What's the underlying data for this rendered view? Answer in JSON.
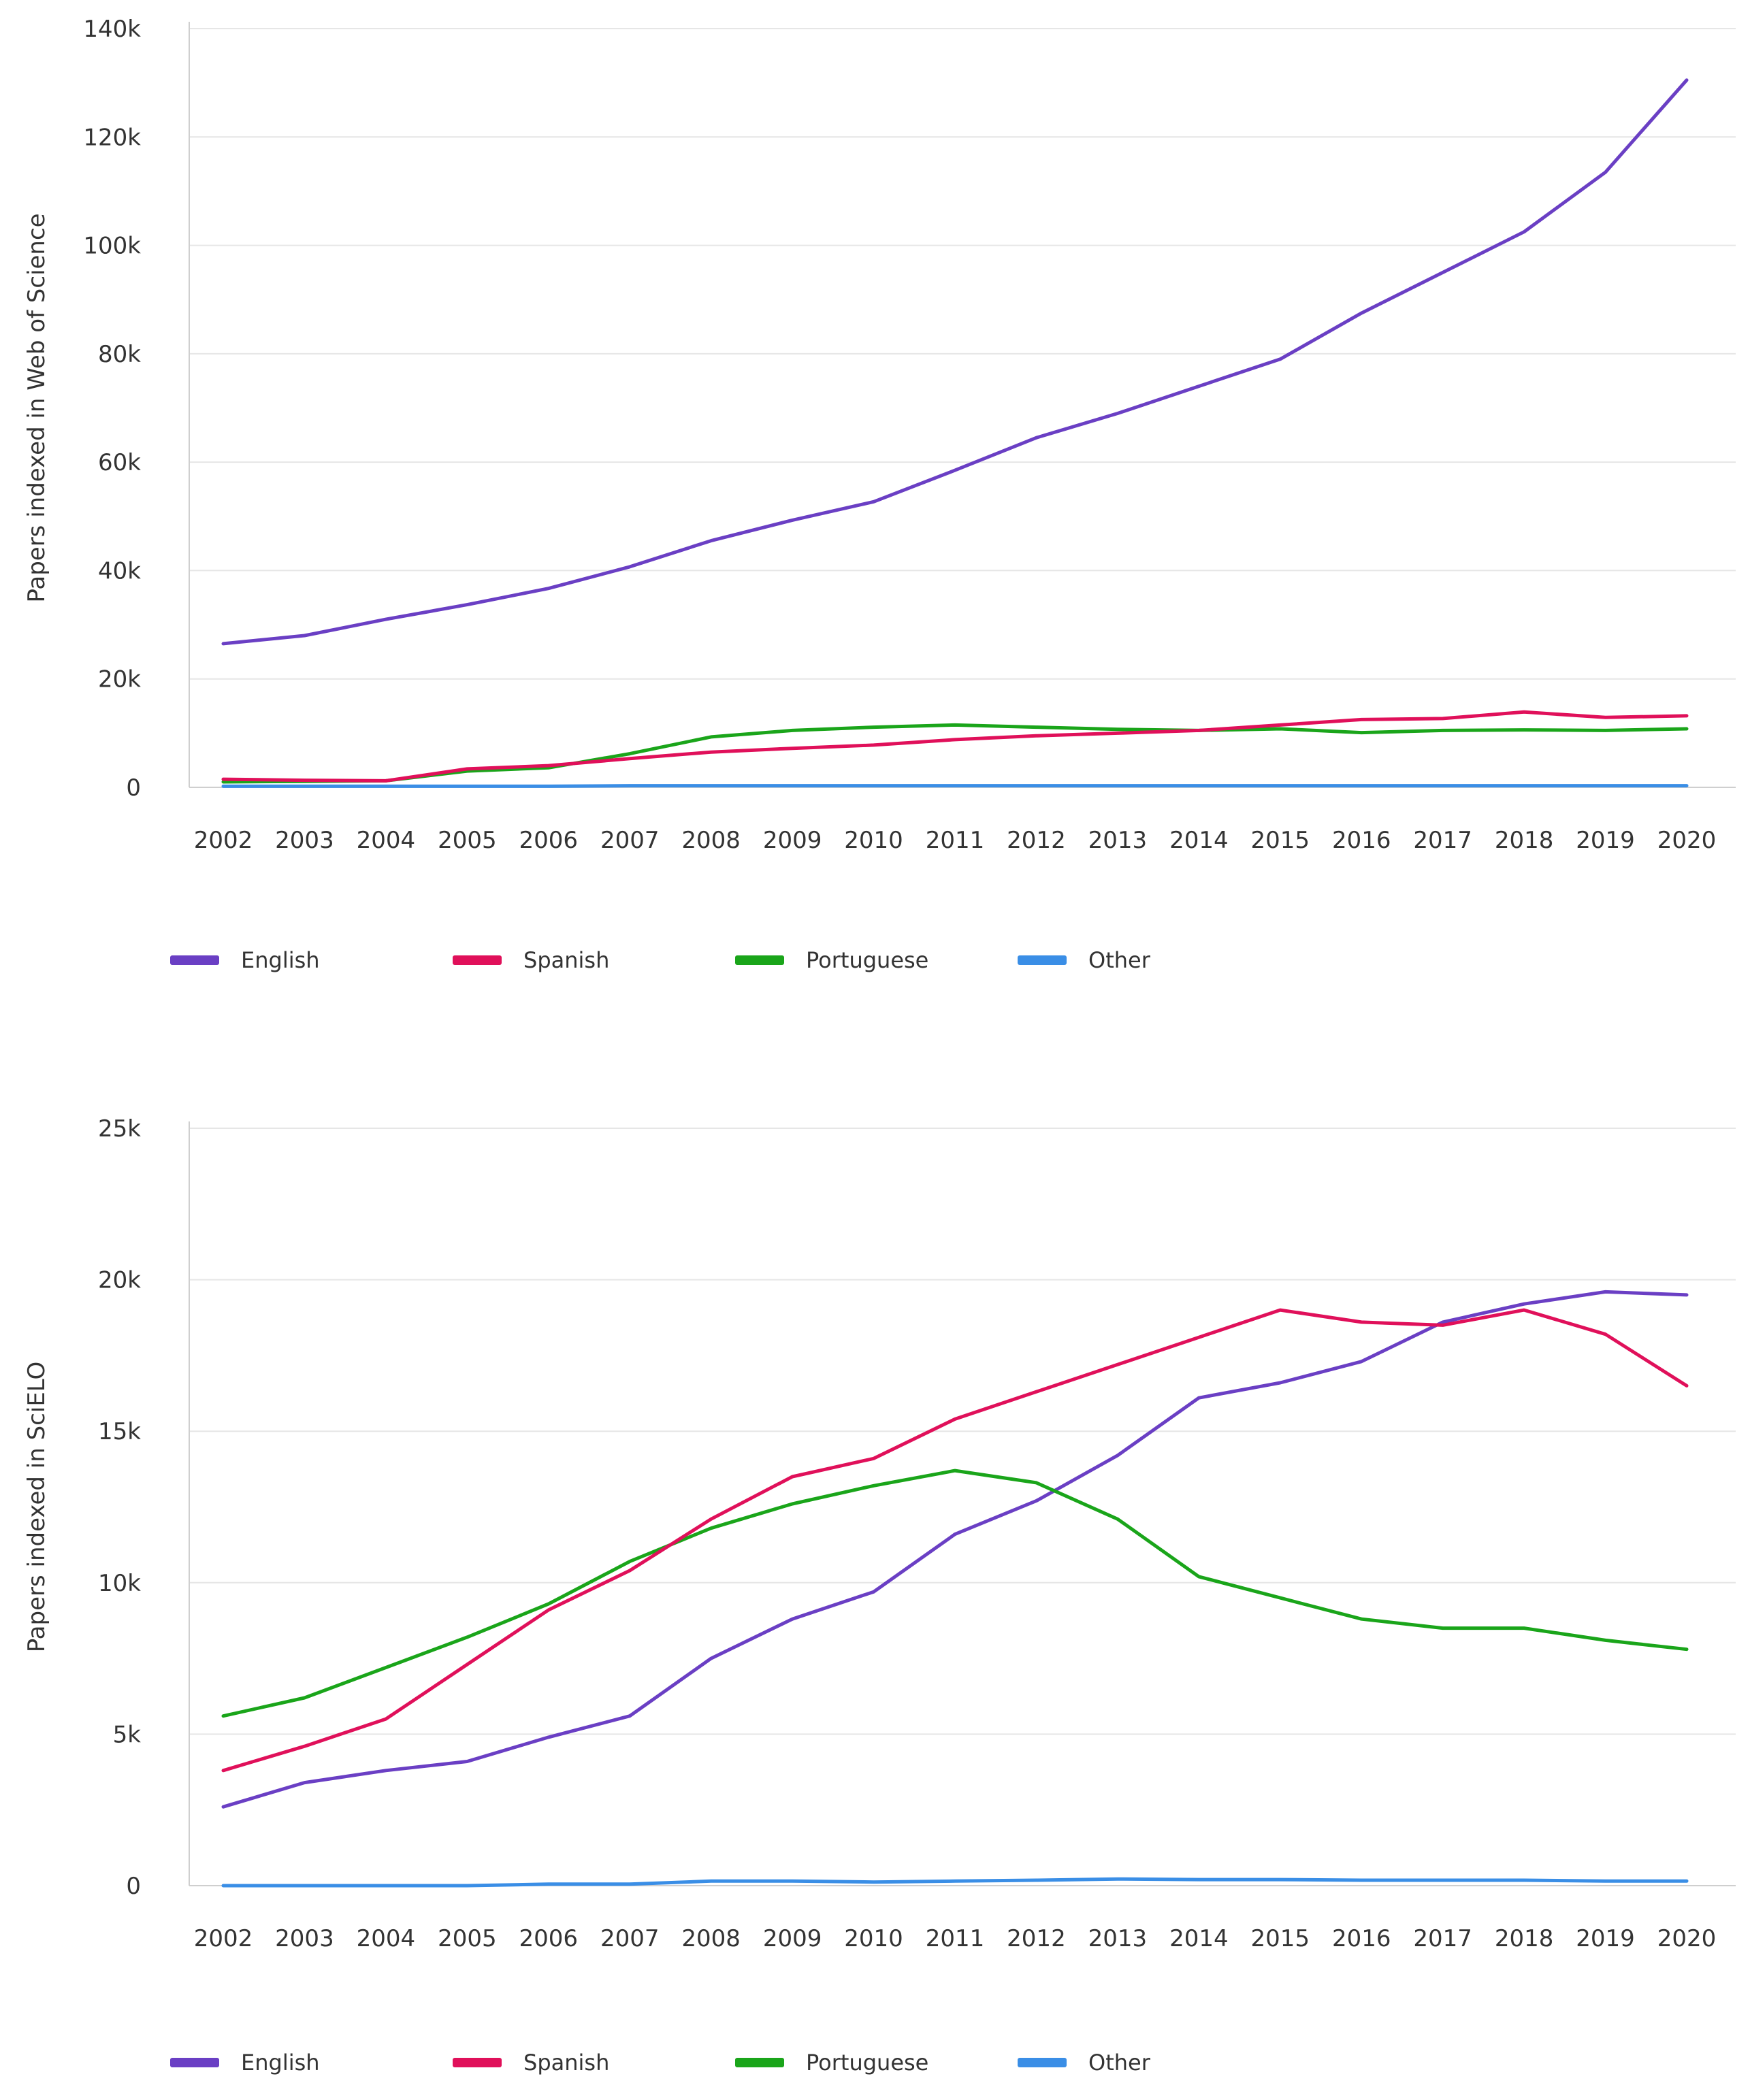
{
  "chart_data": [
    {
      "type": "line",
      "title": "",
      "xlabel": "",
      "ylabel": "Papers indexed in Web of Science",
      "ylim": [
        0,
        140000
      ],
      "yticks": [
        0,
        20000,
        40000,
        60000,
        80000,
        100000,
        120000,
        140000
      ],
      "ytick_labels": [
        "0",
        "20k",
        "40k",
        "60k",
        "80k",
        "100k",
        "120k",
        "140k"
      ],
      "categories": [
        "2002",
        "2003",
        "2004",
        "2005",
        "2006",
        "2007",
        "2008",
        "2009",
        "2010",
        "2011",
        "2012",
        "2013",
        "2014",
        "2015",
        "2016",
        "2017",
        "2018",
        "2019",
        "2020"
      ],
      "series": [
        {
          "name": "English",
          "color": "#6a3fc4",
          "values": [
            26500,
            28000,
            31000,
            33700,
            36700,
            40700,
            45500,
            49300,
            52700,
            58500,
            64500,
            69000,
            74000,
            79000,
            87500,
            95000,
            102500,
            113500,
            130500
          ]
        },
        {
          "name": "Spanish",
          "color": "#e0105a",
          "values": [
            1500,
            1300,
            1200,
            3400,
            4000,
            5300,
            6500,
            7200,
            7800,
            8800,
            9500,
            10000,
            10500,
            11500,
            12500,
            12700,
            13900,
            12900,
            13200
          ]
        },
        {
          "name": "Portuguese",
          "color": "#1aa51a",
          "values": [
            1000,
            1100,
            1200,
            3000,
            3600,
            6200,
            9300,
            10500,
            11100,
            11500,
            11100,
            10700,
            10500,
            10800,
            10100,
            10500,
            10600,
            10500,
            10800
          ]
        },
        {
          "name": "Other",
          "color": "#3a8ee6",
          "values": [
            200,
            200,
            200,
            200,
            200,
            300,
            300,
            300,
            300,
            300,
            300,
            300,
            300,
            300,
            300,
            300,
            300,
            300,
            300
          ]
        }
      ],
      "legend": "bottom-left"
    },
    {
      "type": "line",
      "title": "",
      "xlabel": "",
      "ylabel": "Papers indexed in SciELO",
      "ylim": [
        0,
        25000
      ],
      "yticks": [
        0,
        5000,
        10000,
        15000,
        20000,
        25000
      ],
      "ytick_labels": [
        "0",
        "5k",
        "10k",
        "15k",
        "20k",
        "25k"
      ],
      "categories": [
        "2002",
        "2003",
        "2004",
        "2005",
        "2006",
        "2007",
        "2008",
        "2009",
        "2010",
        "2011",
        "2012",
        "2013",
        "2014",
        "2015",
        "2016",
        "2017",
        "2018",
        "2019",
        "2020"
      ],
      "series": [
        {
          "name": "English",
          "color": "#6a3fc4",
          "values": [
            2600,
            3400,
            3800,
            4100,
            4900,
            5600,
            7500,
            8800,
            9700,
            11600,
            12700,
            14200,
            16100,
            16600,
            17300,
            18600,
            19200,
            19600,
            19500
          ]
        },
        {
          "name": "Spanish",
          "color": "#e0105a",
          "values": [
            3800,
            4600,
            5500,
            7300,
            9100,
            10400,
            12100,
            13500,
            14100,
            15400,
            16300,
            17200,
            18100,
            19000,
            18600,
            18500,
            19000,
            18200,
            16500
          ]
        },
        {
          "name": "Portuguese",
          "color": "#1aa51a",
          "values": [
            5600,
            6200,
            7200,
            8200,
            9300,
            10700,
            11800,
            12600,
            13200,
            13700,
            13300,
            12100,
            10200,
            9500,
            8800,
            8500,
            8500,
            8100,
            7800
          ]
        },
        {
          "name": "Other",
          "color": "#3a8ee6",
          "values": [
            0,
            0,
            0,
            0,
            50,
            50,
            150,
            150,
            120,
            150,
            180,
            220,
            200,
            200,
            180,
            180,
            180,
            150,
            150
          ]
        }
      ],
      "legend": "bottom-left"
    }
  ]
}
